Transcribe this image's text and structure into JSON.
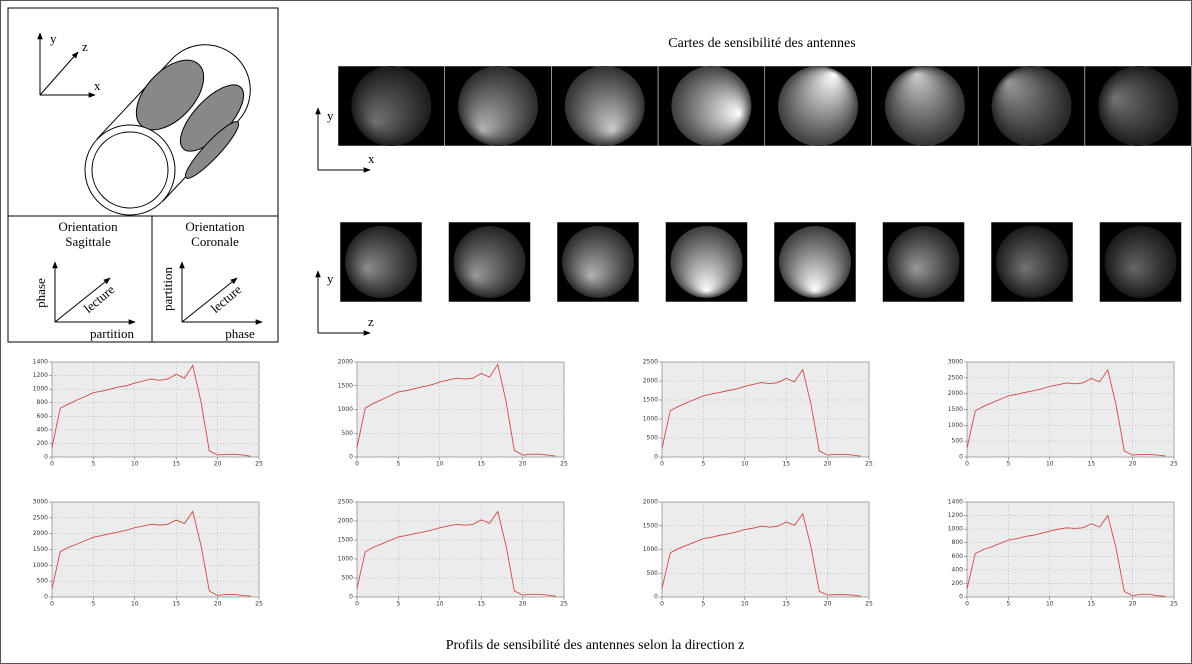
{
  "diagram": {
    "axes": [
      "y",
      "z",
      "x"
    ],
    "orientations": [
      {
        "line1": "Orientation",
        "line2": "Sagittale",
        "vertical": "phase",
        "diagonal": "lecture",
        "horizontal": "partition"
      },
      {
        "line1": "Orientation",
        "line2": "Coronale",
        "vertical": "partition",
        "diagonal": "lecture",
        "horizontal": "phase"
      }
    ]
  },
  "maps": {
    "title": "Cartes de sensibilité des antennes",
    "rows": [
      {
        "axis_v": "y",
        "axis_h": "x"
      },
      {
        "axis_v": "y",
        "axis_h": "z"
      }
    ]
  },
  "caption": "Profils de sensibilité des antennes selon la direction z",
  "chart_data": [
    {
      "type": "line",
      "color": "#d04848",
      "grid": true,
      "x": [
        0,
        1,
        2,
        3,
        4,
        5,
        6,
        7,
        8,
        9,
        10,
        11,
        12,
        13,
        14,
        15,
        16,
        17,
        18,
        19,
        20,
        21,
        22,
        23,
        24
      ],
      "values": [
        140,
        720,
        780,
        840,
        890,
        950,
        970,
        1000,
        1030,
        1050,
        1090,
        1120,
        1150,
        1130,
        1150,
        1220,
        1160,
        1350,
        810,
        90,
        30,
        40,
        40,
        30,
        10
      ],
      "xlim": [
        0,
        25
      ],
      "xticks": [
        0,
        5,
        10,
        15,
        20,
        25
      ],
      "ylim": [
        0,
        1400
      ],
      "yticks": [
        0,
        200,
        400,
        600,
        800,
        1000,
        1200,
        1400
      ]
    },
    {
      "type": "line",
      "color": "#d04848",
      "grid": true,
      "x": [
        0,
        1,
        2,
        3,
        4,
        5,
        6,
        7,
        8,
        9,
        10,
        11,
        12,
        13,
        14,
        15,
        16,
        17,
        18,
        19,
        20,
        21,
        22,
        23,
        24
      ],
      "values": [
        200,
        1030,
        1130,
        1210,
        1290,
        1370,
        1400,
        1440,
        1480,
        1520,
        1580,
        1620,
        1660,
        1640,
        1660,
        1760,
        1680,
        1950,
        1170,
        140,
        40,
        60,
        60,
        40,
        20
      ],
      "xlim": [
        0,
        25
      ],
      "xticks": [
        0,
        5,
        10,
        15,
        20,
        25
      ],
      "ylim": [
        0,
        2000
      ],
      "yticks": [
        0,
        500,
        1000,
        1500,
        2000
      ]
    },
    {
      "type": "line",
      "color": "#d04848",
      "grid": true,
      "x": [
        0,
        1,
        2,
        3,
        4,
        5,
        6,
        7,
        8,
        9,
        10,
        11,
        12,
        13,
        14,
        15,
        16,
        17,
        18,
        19,
        20,
        21,
        22,
        23,
        24
      ],
      "values": [
        230,
        1220,
        1330,
        1430,
        1520,
        1610,
        1660,
        1700,
        1750,
        1790,
        1860,
        1910,
        1960,
        1930,
        1960,
        2070,
        1980,
        2300,
        1380,
        160,
        50,
        70,
        70,
        50,
        20
      ],
      "xlim": [
        0,
        25
      ],
      "xticks": [
        0,
        5,
        10,
        15,
        20,
        25
      ],
      "ylim": [
        0,
        2500
      ],
      "yticks": [
        0,
        500,
        1000,
        1500,
        2000,
        2500
      ]
    },
    {
      "type": "line",
      "color": "#d04848",
      "grid": true,
      "x": [
        0,
        1,
        2,
        3,
        4,
        5,
        6,
        7,
        8,
        9,
        10,
        11,
        12,
        13,
        14,
        15,
        16,
        17,
        18,
        19,
        20,
        21,
        22,
        23,
        24
      ],
      "values": [
        280,
        1460,
        1600,
        1710,
        1820,
        1930,
        1980,
        2040,
        2090,
        2150,
        2230,
        2280,
        2340,
        2310,
        2340,
        2480,
        2370,
        2750,
        1650,
        190,
        60,
        80,
        80,
        60,
        30
      ],
      "xlim": [
        0,
        25
      ],
      "xticks": [
        0,
        5,
        10,
        15,
        20,
        25
      ],
      "ylim": [
        0,
        3000
      ],
      "yticks": [
        0,
        500,
        1000,
        1500,
        2000,
        2500,
        3000
      ]
    },
    {
      "type": "line",
      "color": "#d04848",
      "grid": true,
      "x": [
        0,
        1,
        2,
        3,
        4,
        5,
        6,
        7,
        8,
        9,
        10,
        11,
        12,
        13,
        14,
        15,
        16,
        17,
        18,
        19,
        20,
        21,
        22,
        23,
        24
      ],
      "values": [
        270,
        1430,
        1570,
        1670,
        1780,
        1890,
        1940,
        2000,
        2050,
        2110,
        2190,
        2240,
        2300,
        2270,
        2300,
        2430,
        2320,
        2700,
        1620,
        190,
        50,
        80,
        80,
        50,
        30
      ],
      "xlim": [
        0,
        25
      ],
      "xticks": [
        0,
        5,
        10,
        15,
        20,
        25
      ],
      "ylim": [
        0,
        3000
      ],
      "yticks": [
        0,
        500,
        1000,
        1500,
        2000,
        2500,
        3000
      ]
    },
    {
      "type": "line",
      "color": "#d04848",
      "grid": true,
      "x": [
        0,
        1,
        2,
        3,
        4,
        5,
        6,
        7,
        8,
        9,
        10,
        11,
        12,
        13,
        14,
        15,
        16,
        17,
        18,
        19,
        20,
        21,
        22,
        23,
        24
      ],
      "values": [
        230,
        1190,
        1310,
        1400,
        1490,
        1580,
        1620,
        1670,
        1710,
        1760,
        1820,
        1870,
        1910,
        1890,
        1910,
        2030,
        1940,
        2250,
        1350,
        160,
        50,
        70,
        70,
        50,
        20
      ],
      "xlim": [
        0,
        25
      ],
      "xticks": [
        0,
        5,
        10,
        15,
        20,
        25
      ],
      "ylim": [
        0,
        2500
      ],
      "yticks": [
        0,
        500,
        1000,
        1500,
        2000,
        2500
      ]
    },
    {
      "type": "line",
      "color": "#d04848",
      "grid": true,
      "x": [
        0,
        1,
        2,
        3,
        4,
        5,
        6,
        7,
        8,
        9,
        10,
        11,
        12,
        13,
        14,
        15,
        16,
        17,
        18,
        19,
        20,
        21,
        22,
        23,
        24
      ],
      "values": [
        180,
        930,
        1020,
        1090,
        1160,
        1230,
        1260,
        1300,
        1330,
        1370,
        1420,
        1450,
        1490,
        1470,
        1490,
        1580,
        1510,
        1750,
        1050,
        120,
        40,
        50,
        50,
        40,
        20
      ],
      "xlim": [
        0,
        25
      ],
      "xticks": [
        0,
        5,
        10,
        15,
        20,
        25
      ],
      "ylim": [
        0,
        2000
      ],
      "yticks": [
        0,
        500,
        1000,
        1500,
        2000
      ]
    },
    {
      "type": "line",
      "color": "#d04848",
      "grid": true,
      "x": [
        0,
        1,
        2,
        3,
        4,
        5,
        6,
        7,
        8,
        9,
        10,
        11,
        12,
        13,
        14,
        15,
        16,
        17,
        18,
        19,
        20,
        21,
        22,
        23,
        24
      ],
      "values": [
        120,
        640,
        700,
        740,
        790,
        840,
        860,
        890,
        910,
        940,
        970,
        1000,
        1020,
        1010,
        1020,
        1080,
        1030,
        1200,
        720,
        80,
        20,
        40,
        40,
        20,
        10
      ],
      "xlim": [
        0,
        25
      ],
      "xticks": [
        0,
        5,
        10,
        15,
        20,
        25
      ],
      "ylim": [
        0,
        1400
      ],
      "yticks": [
        0,
        200,
        400,
        600,
        800,
        1000,
        1200,
        1400
      ]
    }
  ]
}
